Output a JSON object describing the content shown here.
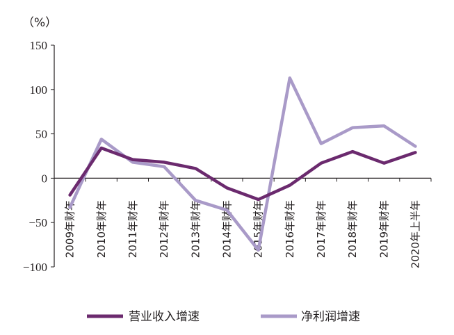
{
  "chart_data": {
    "type": "line",
    "unit_label": "（%）",
    "ylim": [
      -100,
      150
    ],
    "yticks": [
      "150",
      "100",
      "50",
      "0",
      "−50",
      "−100"
    ],
    "ytick_values": [
      150,
      100,
      50,
      0,
      -50,
      -100
    ],
    "categories": [
      "2009年财年",
      "2010年财年",
      "2011年财年",
      "2012年财年",
      "2013年财年",
      "2014年财年",
      "2015年财年",
      "2016年财年",
      "2017年财年",
      "2018年财年",
      "2019年财年",
      "2020年上半年"
    ],
    "series": [
      {
        "name": "营业收入增速",
        "color": "#6b2a6e",
        "values": [
          -19,
          34,
          21,
          18,
          11,
          -11,
          -24,
          -8,
          17,
          30,
          17,
          29
        ]
      },
      {
        "name": "净利润增速",
        "color": "#a99ac8",
        "values": [
          -33,
          44,
          18,
          13,
          -25,
          -36,
          -81,
          113,
          39,
          57,
          59,
          36
        ]
      }
    ],
    "grid": false,
    "legend_position": "bottom"
  }
}
